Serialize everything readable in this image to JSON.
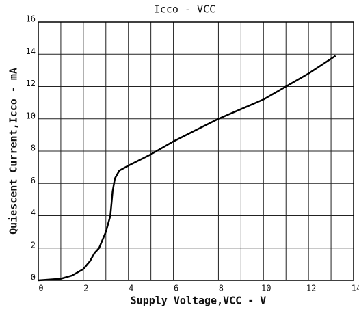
{
  "chart_data": {
    "type": "line",
    "title": "Icco - VCC",
    "xlabel": "Supply Voltage,VCC - V",
    "ylabel": "Quiescent Current,Icco - mA",
    "x": [
      0,
      1,
      1.5,
      2,
      2.3,
      2.5,
      2.7,
      3,
      3.2,
      3.3,
      3.4,
      3.6,
      4,
      5,
      6,
      7,
      8,
      9,
      10,
      11,
      12,
      13.2
    ],
    "series": [
      {
        "color": "#000000",
        "values": [
          0,
          0.1,
          0.3,
          0.7,
          1.2,
          1.7,
          2,
          3,
          4,
          5.5,
          6.3,
          6.8,
          7.1,
          7.8,
          8.6,
          9.3,
          10,
          10.6,
          11.2,
          12,
          12.8,
          13.9
        ]
      }
    ],
    "xlim": [
      0,
      14
    ],
    "xticks": [
      0,
      2,
      4,
      6,
      8,
      10,
      12,
      14
    ],
    "xgrid": [
      0,
      1,
      2,
      3,
      4,
      5,
      6,
      7,
      8,
      9,
      10,
      11,
      12,
      13,
      14
    ],
    "ylim": [
      0,
      16
    ],
    "yticks": [
      0,
      2,
      4,
      6,
      8,
      10,
      12,
      14,
      16
    ],
    "grid": true
  }
}
